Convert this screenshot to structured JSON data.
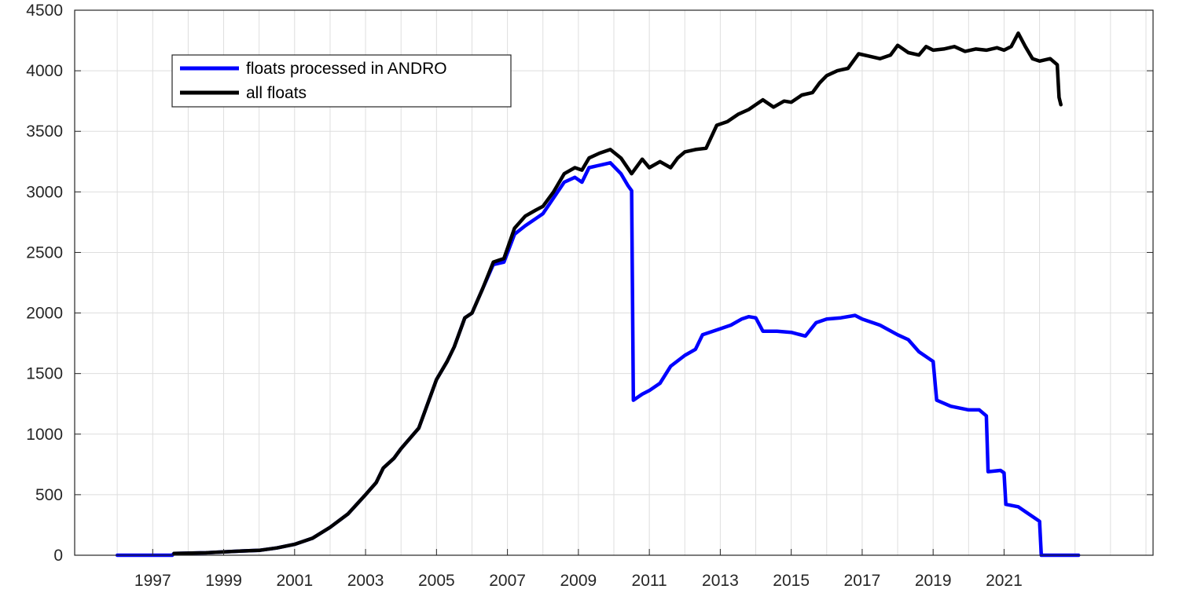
{
  "chart_data": {
    "type": "line",
    "title": "",
    "xlabel": "",
    "ylabel": "",
    "xlim": [
      1994.8,
      2025.2
    ],
    "ylim": [
      0,
      4500
    ],
    "grid": true,
    "legend_position": "top-left",
    "x_ticks": [
      1997,
      1999,
      2001,
      2003,
      2005,
      2007,
      2009,
      2011,
      2013,
      2015,
      2017,
      2019,
      2021
    ],
    "x_tick_labels": [
      "1997",
      "1999",
      "2001",
      "2003",
      "2005",
      "2007",
      "2009",
      "2011",
      "2013",
      "2015",
      "2017",
      "2019",
      "2021"
    ],
    "x_minor_grid": [
      1996,
      1998,
      2000,
      2002,
      2004,
      2006,
      2008,
      2010,
      2012,
      2014,
      2016,
      2018,
      2020,
      2022,
      2023,
      2024,
      2025
    ],
    "y_ticks": [
      0,
      500,
      1000,
      1500,
      2000,
      2500,
      3000,
      3500,
      4000,
      4500
    ],
    "y_tick_labels": [
      "0",
      "500",
      "1000",
      "1500",
      "2000",
      "2500",
      "3000",
      "3500",
      "4000",
      "4500"
    ],
    "series": [
      {
        "name": "floats processed in ANDRO",
        "color": "#0000ff",
        "points": [
          [
            1996.0,
            0
          ],
          [
            1997.0,
            0
          ],
          [
            1997.55,
            0
          ],
          [
            1997.6,
            15
          ],
          [
            1998.5,
            20
          ],
          [
            1999.5,
            35
          ],
          [
            2000.0,
            40
          ],
          [
            2000.5,
            60
          ],
          [
            2001.0,
            90
          ],
          [
            2001.5,
            140
          ],
          [
            2002.0,
            230
          ],
          [
            2002.5,
            340
          ],
          [
            2003.0,
            500
          ],
          [
            2003.3,
            600
          ],
          [
            2003.5,
            720
          ],
          [
            2003.8,
            800
          ],
          [
            2004.0,
            880
          ],
          [
            2004.5,
            1050
          ],
          [
            2005.0,
            1450
          ],
          [
            2005.3,
            1600
          ],
          [
            2005.5,
            1720
          ],
          [
            2005.8,
            1960
          ],
          [
            2006.0,
            2000
          ],
          [
            2006.3,
            2200
          ],
          [
            2006.6,
            2400
          ],
          [
            2006.9,
            2420
          ],
          [
            2007.2,
            2650
          ],
          [
            2007.5,
            2720
          ],
          [
            2007.8,
            2780
          ],
          [
            2008.0,
            2820
          ],
          [
            2008.3,
            2950
          ],
          [
            2008.6,
            3080
          ],
          [
            2008.9,
            3120
          ],
          [
            2009.1,
            3080
          ],
          [
            2009.3,
            3200
          ],
          [
            2009.6,
            3220
          ],
          [
            2009.9,
            3240
          ],
          [
            2010.2,
            3150
          ],
          [
            2010.4,
            3050
          ],
          [
            2010.5,
            3010
          ],
          [
            2010.55,
            1280
          ],
          [
            2010.8,
            1330
          ],
          [
            2011.0,
            1360
          ],
          [
            2011.3,
            1420
          ],
          [
            2011.6,
            1560
          ],
          [
            2012.0,
            1650
          ],
          [
            2012.3,
            1700
          ],
          [
            2012.5,
            1820
          ],
          [
            2013.0,
            1870
          ],
          [
            2013.3,
            1900
          ],
          [
            2013.6,
            1950
          ],
          [
            2013.8,
            1970
          ],
          [
            2014.0,
            1960
          ],
          [
            2014.2,
            1850
          ],
          [
            2014.6,
            1850
          ],
          [
            2015.0,
            1840
          ],
          [
            2015.4,
            1810
          ],
          [
            2015.7,
            1920
          ],
          [
            2016.0,
            1950
          ],
          [
            2016.4,
            1960
          ],
          [
            2016.8,
            1980
          ],
          [
            2017.0,
            1950
          ],
          [
            2017.5,
            1900
          ],
          [
            2018.0,
            1820
          ],
          [
            2018.3,
            1780
          ],
          [
            2018.6,
            1680
          ],
          [
            2018.9,
            1620
          ],
          [
            2019.0,
            1600
          ],
          [
            2019.1,
            1280
          ],
          [
            2019.5,
            1230
          ],
          [
            2020.0,
            1200
          ],
          [
            2020.3,
            1200
          ],
          [
            2020.5,
            1150
          ],
          [
            2020.55,
            690
          ],
          [
            2020.9,
            700
          ],
          [
            2021.0,
            680
          ],
          [
            2021.05,
            420
          ],
          [
            2021.4,
            400
          ],
          [
            2021.6,
            360
          ],
          [
            2021.9,
            300
          ],
          [
            2022.0,
            280
          ],
          [
            2022.05,
            0
          ],
          [
            2022.5,
            0
          ],
          [
            2023.1,
            0
          ]
        ]
      },
      {
        "name": "all floats",
        "color": "#000000",
        "points": [
          [
            1997.6,
            15
          ],
          [
            1998.5,
            20
          ],
          [
            1999.5,
            35
          ],
          [
            2000.0,
            40
          ],
          [
            2000.5,
            60
          ],
          [
            2001.0,
            90
          ],
          [
            2001.5,
            140
          ],
          [
            2002.0,
            230
          ],
          [
            2002.5,
            340
          ],
          [
            2003.0,
            500
          ],
          [
            2003.3,
            600
          ],
          [
            2003.5,
            720
          ],
          [
            2003.8,
            800
          ],
          [
            2004.0,
            880
          ],
          [
            2004.5,
            1050
          ],
          [
            2005.0,
            1450
          ],
          [
            2005.3,
            1600
          ],
          [
            2005.5,
            1720
          ],
          [
            2005.8,
            1960
          ],
          [
            2006.0,
            2000
          ],
          [
            2006.3,
            2200
          ],
          [
            2006.6,
            2420
          ],
          [
            2006.9,
            2450
          ],
          [
            2007.2,
            2700
          ],
          [
            2007.5,
            2800
          ],
          [
            2007.8,
            2850
          ],
          [
            2008.0,
            2880
          ],
          [
            2008.3,
            3000
          ],
          [
            2008.6,
            3150
          ],
          [
            2008.9,
            3200
          ],
          [
            2009.1,
            3180
          ],
          [
            2009.3,
            3280
          ],
          [
            2009.6,
            3320
          ],
          [
            2009.9,
            3350
          ],
          [
            2010.2,
            3280
          ],
          [
            2010.5,
            3150
          ],
          [
            2010.8,
            3270
          ],
          [
            2011.0,
            3200
          ],
          [
            2011.3,
            3250
          ],
          [
            2011.6,
            3200
          ],
          [
            2011.8,
            3280
          ],
          [
            2012.0,
            3330
          ],
          [
            2012.3,
            3350
          ],
          [
            2012.6,
            3360
          ],
          [
            2012.9,
            3550
          ],
          [
            2013.2,
            3580
          ],
          [
            2013.5,
            3640
          ],
          [
            2013.8,
            3680
          ],
          [
            2014.0,
            3720
          ],
          [
            2014.2,
            3760
          ],
          [
            2014.5,
            3700
          ],
          [
            2014.8,
            3750
          ],
          [
            2015.0,
            3740
          ],
          [
            2015.3,
            3800
          ],
          [
            2015.6,
            3820
          ],
          [
            2015.8,
            3900
          ],
          [
            2016.0,
            3960
          ],
          [
            2016.3,
            4000
          ],
          [
            2016.6,
            4020
          ],
          [
            2016.9,
            4140
          ],
          [
            2017.2,
            4120
          ],
          [
            2017.5,
            4100
          ],
          [
            2017.8,
            4130
          ],
          [
            2018.0,
            4210
          ],
          [
            2018.3,
            4150
          ],
          [
            2018.6,
            4130
          ],
          [
            2018.8,
            4200
          ],
          [
            2019.0,
            4170
          ],
          [
            2019.3,
            4180
          ],
          [
            2019.6,
            4200
          ],
          [
            2019.9,
            4160
          ],
          [
            2020.2,
            4180
          ],
          [
            2020.5,
            4170
          ],
          [
            2020.8,
            4190
          ],
          [
            2021.0,
            4170
          ],
          [
            2021.2,
            4200
          ],
          [
            2021.4,
            4310
          ],
          [
            2021.6,
            4200
          ],
          [
            2021.8,
            4100
          ],
          [
            2022.0,
            4080
          ],
          [
            2022.3,
            4100
          ],
          [
            2022.5,
            4050
          ],
          [
            2022.55,
            3780
          ],
          [
            2022.6,
            3720
          ]
        ]
      }
    ]
  }
}
